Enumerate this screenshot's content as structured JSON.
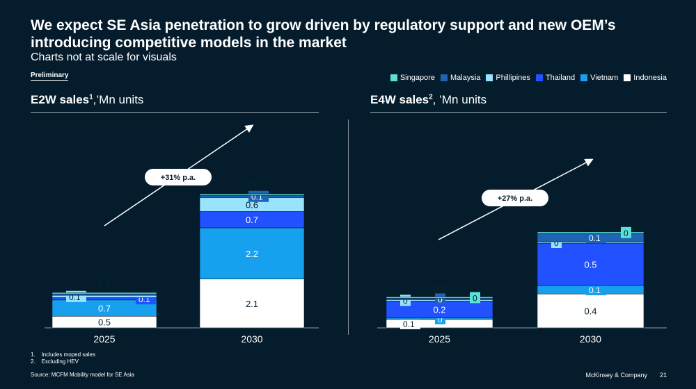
{
  "title": "We expect SE Asia penetration to grow driven by regulatory support and new OEM’s introducing competitive models in the market",
  "subtitle": "Charts not at scale for visuals",
  "preliminary": "Preliminary",
  "legend": [
    {
      "name": "Singapore",
      "color": "#5ce0d8"
    },
    {
      "name": "Malaysia",
      "color": "#1f63b5"
    },
    {
      "name": "Phillipines",
      "color": "#99e3ff"
    },
    {
      "name": "Thailand",
      "color": "#2251ff"
    },
    {
      "name": "Vietnam",
      "color": "#17a0ed"
    },
    {
      "name": "Indonesia",
      "color": "#ffffff"
    }
  ],
  "left_chart": {
    "title": "E2W sales",
    "sup": "1",
    "unit": ",’Mn units"
  },
  "right_chart": {
    "title": "E4W sales",
    "sup": "2",
    "unit": ", ’Mn units"
  },
  "chart_data": [
    {
      "type": "bar",
      "stacked": true,
      "title": "E2W sales, ’Mn units",
      "categories": [
        "2025",
        "2030"
      ],
      "totals": [
        "1.4",
        "5.5"
      ],
      "growth": "+31% p.a.",
      "series": [
        {
          "name": "Indonesia",
          "values": [
            0.5,
            2.1
          ],
          "labels": [
            "0.5",
            "2.1"
          ]
        },
        {
          "name": "Vietnam",
          "values": [
            0.7,
            2.2
          ],
          "labels": [
            "0.7",
            "2.2"
          ]
        },
        {
          "name": "Thailand",
          "values": [
            0.1,
            0.7
          ],
          "labels": [
            "0.1",
            "0.7"
          ]
        },
        {
          "name": "Phillipines",
          "values": [
            0.1,
            0.6
          ],
          "labels": [
            "0.1",
            "0.6"
          ]
        },
        {
          "name": "Malaysia",
          "values": [
            0.0,
            0.1
          ],
          "labels": [
            "",
            "0.1"
          ]
        },
        {
          "name": "Singapore",
          "values": [
            0.0,
            0.0
          ],
          "labels": [
            "",
            ""
          ]
        }
      ]
    },
    {
      "type": "bar",
      "stacked": true,
      "title": "E4W sales, ’Mn units",
      "categories": [
        "2025",
        "2030"
      ],
      "totals": [
        "0.3",
        "1.1"
      ],
      "growth": "+27% p.a.",
      "series": [
        {
          "name": "Indonesia",
          "values": [
            0.1,
            0.4
          ],
          "labels": [
            "0.1",
            "0.4"
          ]
        },
        {
          "name": "Vietnam",
          "values": [
            0.0,
            0.1
          ],
          "labels": [
            "0",
            "0.1"
          ]
        },
        {
          "name": "Thailand",
          "values": [
            0.2,
            0.5
          ],
          "labels": [
            "0.2",
            "0.5"
          ]
        },
        {
          "name": "Phillipines",
          "values": [
            0.0,
            0.0
          ],
          "labels": [
            "0",
            "0"
          ]
        },
        {
          "name": "Malaysia",
          "values": [
            0.0,
            0.1
          ],
          "labels": [
            "0",
            "0.1"
          ]
        },
        {
          "name": "Singapore",
          "values": [
            0.0,
            0.0
          ],
          "labels": [
            "0",
            "0"
          ]
        }
      ]
    }
  ],
  "footnotes": [
    "Includes moped sales",
    "Excluding HEV"
  ],
  "source": "Source: MCFM Mobility model for SE Asia",
  "brand": "McKinsey & Company",
  "page_number": "21"
}
